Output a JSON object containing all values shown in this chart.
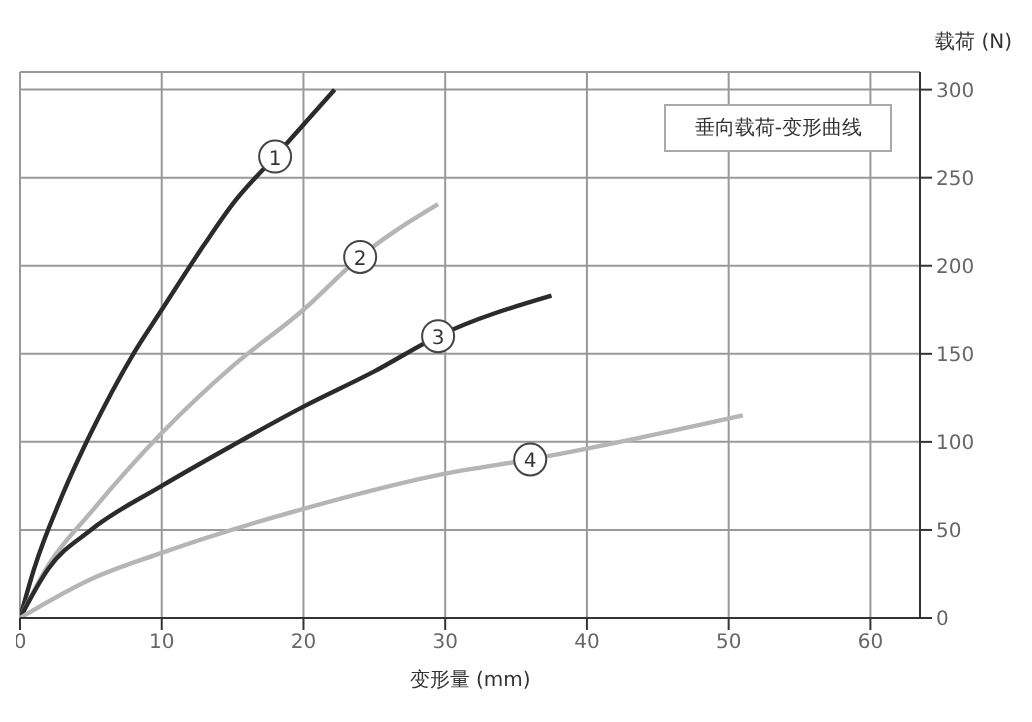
{
  "chart_data": {
    "type": "line",
    "title": "垂向载荷-变形曲线",
    "xlabel": "变形量 (mm)",
    "ylabel": "载荷 (N)",
    "xlim": [
      0,
      63.5
    ],
    "xticks": [
      0,
      10,
      20,
      30,
      40,
      50,
      60
    ],
    "ylim": [
      0,
      310
    ],
    "yticks": [
      0,
      50,
      100,
      150,
      200,
      250,
      300
    ],
    "grid": true,
    "legend": false,
    "marker": "none",
    "line_style": "solid",
    "series": [
      {
        "name": "1",
        "color": "#2b2b2b",
        "x": [
          0,
          1,
          3,
          5,
          8,
          10,
          13,
          15,
          18,
          22.2
        ],
        "values": [
          0,
          28,
          70,
          105,
          150,
          175,
          212,
          235,
          262,
          300
        ]
      },
      {
        "name": "2",
        "color": "#b5b5b5",
        "x": [
          0,
          2,
          5,
          10,
          15,
          20,
          24,
          29.5
        ],
        "values": [
          0,
          30,
          60,
          105,
          143,
          175,
          205,
          235
        ]
      },
      {
        "name": "3",
        "color": "#2b2b2b",
        "x": [
          0,
          2,
          5,
          10,
          15,
          20,
          25,
          29.5,
          37.5
        ],
        "values": [
          0,
          28,
          50,
          75,
          98,
          120,
          140,
          160,
          183
        ]
      },
      {
        "name": "4",
        "color": "#b5b5b5",
        "x": [
          0,
          5,
          10,
          20,
          30,
          36,
          51
        ],
        "values": [
          0,
          22,
          37,
          62,
          82,
          90,
          115
        ]
      }
    ]
  }
}
